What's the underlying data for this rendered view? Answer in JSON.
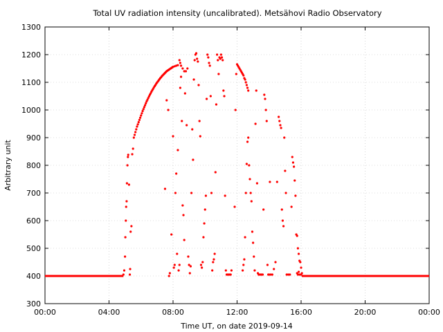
{
  "chart_data": {
    "type": "scatter",
    "title": "Total UV radiation intensity (uncalibrated). Metsähovi Radio Observatory",
    "xlabel": "Time UT, on date 2019-09-14",
    "ylabel": "Arbitrary unit",
    "xlim": [
      0,
      24
    ],
    "ylim": [
      300,
      1300
    ],
    "x_ticks": [
      0,
      4,
      8,
      12,
      16,
      20,
      24
    ],
    "x_tick_labels": [
      "00:00",
      "04:00",
      "08:00",
      "12:00",
      "16:00",
      "20:00",
      "00:00"
    ],
    "y_ticks": [
      300,
      400,
      500,
      600,
      700,
      800,
      900,
      1000,
      1100,
      1200,
      1300
    ],
    "y_tick_labels": [
      "300",
      "400",
      "500",
      "600",
      "700",
      "800",
      "900",
      "1000",
      "1100",
      "1200",
      "1300"
    ],
    "grid": true,
    "marker_color": "#ff0000",
    "baseline": {
      "value": 400,
      "x_ranges": [
        [
          0,
          4.9
        ],
        [
          16.1,
          24
        ]
      ]
    },
    "series": [
      {
        "points": [
          [
            4.9,
            405
          ],
          [
            4.95,
            420
          ],
          [
            5.0,
            470
          ],
          [
            5.02,
            540
          ],
          [
            5.05,
            600
          ],
          [
            5.07,
            650
          ],
          [
            5.1,
            670
          ],
          [
            5.12,
            735
          ],
          [
            5.15,
            800
          ],
          [
            5.18,
            830
          ],
          [
            5.2,
            838
          ],
          [
            5.25,
            730
          ],
          [
            5.3,
            405
          ],
          [
            5.32,
            425
          ],
          [
            5.35,
            560
          ],
          [
            5.4,
            580
          ],
          [
            5.45,
            840
          ],
          [
            5.5,
            860
          ],
          [
            5.55,
            900
          ],
          [
            5.6,
            910
          ],
          [
            5.65,
            920
          ],
          [
            5.7,
            930
          ],
          [
            5.75,
            940
          ],
          [
            5.8,
            948
          ],
          [
            5.85,
            956
          ],
          [
            5.9,
            964
          ],
          [
            5.95,
            972
          ],
          [
            6.0,
            980
          ],
          [
            6.05,
            988
          ],
          [
            6.1,
            996
          ],
          [
            6.15,
            1003
          ],
          [
            6.2,
            1010
          ],
          [
            6.25,
            1017
          ],
          [
            6.3,
            1024
          ],
          [
            6.35,
            1031
          ],
          [
            6.4,
            1037
          ],
          [
            6.45,
            1043
          ],
          [
            6.5,
            1049
          ],
          [
            6.55,
            1055
          ],
          [
            6.6,
            1060
          ],
          [
            6.65,
            1066
          ],
          [
            6.7,
            1071
          ],
          [
            6.75,
            1076
          ],
          [
            6.8,
            1081
          ],
          [
            6.85,
            1086
          ],
          [
            6.9,
            1090
          ],
          [
            6.95,
            1095
          ],
          [
            7.0,
            1099
          ],
          [
            7.05,
            1103
          ],
          [
            7.1,
            1107
          ],
          [
            7.15,
            1111
          ],
          [
            7.2,
            1115
          ],
          [
            7.25,
            1118
          ],
          [
            7.3,
            1122
          ],
          [
            7.35,
            1125
          ],
          [
            7.4,
            1128
          ],
          [
            7.45,
            1131
          ],
          [
            7.5,
            1134
          ],
          [
            7.55,
            1137
          ],
          [
            7.6,
            1140
          ],
          [
            7.65,
            1142
          ],
          [
            7.7,
            1144
          ],
          [
            7.75,
            1146
          ],
          [
            7.8,
            1148
          ],
          [
            7.85,
            1150
          ],
          [
            7.9,
            1152
          ],
          [
            7.95,
            1154
          ],
          [
            8.0,
            1156
          ],
          [
            8.1,
            1158
          ],
          [
            8.2,
            1160
          ],
          [
            8.3,
            1162
          ],
          [
            8.4,
            1180
          ],
          [
            8.45,
            1170
          ],
          [
            8.5,
            1160
          ],
          [
            8.6,
            1150
          ],
          [
            8.7,
            1140
          ],
          [
            7.5,
            715
          ],
          [
            7.6,
            1035
          ],
          [
            7.7,
            1000
          ],
          [
            7.75,
            400
          ],
          [
            7.8,
            410
          ],
          [
            7.9,
            550
          ],
          [
            8.0,
            905
          ],
          [
            8.05,
            430
          ],
          [
            8.1,
            440
          ],
          [
            8.15,
            700
          ],
          [
            8.2,
            770
          ],
          [
            8.25,
            480
          ],
          [
            8.3,
            855
          ],
          [
            8.35,
            420
          ],
          [
            8.4,
            440
          ],
          [
            8.45,
            1080
          ],
          [
            8.5,
            1120
          ],
          [
            8.55,
            960
          ],
          [
            8.6,
            655
          ],
          [
            8.65,
            620
          ],
          [
            8.7,
            530
          ],
          [
            8.75,
            1060
          ],
          [
            8.8,
            1140
          ],
          [
            8.85,
            945
          ],
          [
            8.9,
            1150
          ],
          [
            8.95,
            470
          ],
          [
            9.0,
            440
          ],
          [
            9.05,
            410
          ],
          [
            9.1,
            435
          ],
          [
            9.15,
            700
          ],
          [
            9.2,
            930
          ],
          [
            9.25,
            820
          ],
          [
            9.3,
            1110
          ],
          [
            9.35,
            1180
          ],
          [
            9.4,
            1200
          ],
          [
            9.45,
            1205
          ],
          [
            9.5,
            1185
          ],
          [
            9.55,
            1175
          ],
          [
            9.6,
            1090
          ],
          [
            9.65,
            960
          ],
          [
            9.7,
            905
          ],
          [
            9.75,
            440
          ],
          [
            9.8,
            430
          ],
          [
            9.85,
            450
          ],
          [
            9.9,
            540
          ],
          [
            9.95,
            590
          ],
          [
            10.0,
            640
          ],
          [
            10.05,
            690
          ],
          [
            10.1,
            1040
          ],
          [
            10.15,
            1200
          ],
          [
            10.2,
            1190
          ],
          [
            10.25,
            1170
          ],
          [
            10.3,
            1160
          ],
          [
            10.35,
            1050
          ],
          [
            10.4,
            700
          ],
          [
            10.45,
            420
          ],
          [
            10.5,
            450
          ],
          [
            10.55,
            460
          ],
          [
            10.6,
            480
          ],
          [
            10.65,
            775
          ],
          [
            10.7,
            1020
          ],
          [
            10.75,
            1200
          ],
          [
            10.8,
            1180
          ],
          [
            10.85,
            1130
          ],
          [
            10.9,
            1190
          ],
          [
            10.95,
            1185
          ],
          [
            11.0,
            1200
          ],
          [
            11.05,
            1190
          ],
          [
            11.1,
            1180
          ],
          [
            11.15,
            1070
          ],
          [
            11.2,
            1050
          ],
          [
            11.25,
            690
          ],
          [
            11.3,
            420
          ],
          [
            11.35,
            405
          ],
          [
            11.4,
            405
          ],
          [
            11.45,
            405
          ],
          [
            11.5,
            405
          ],
          [
            11.55,
            405
          ],
          [
            11.6,
            405
          ],
          [
            11.65,
            420
          ],
          [
            11.85,
            650
          ],
          [
            11.9,
            1000
          ],
          [
            11.95,
            1130
          ],
          [
            12.0,
            1165
          ],
          [
            12.05,
            1160
          ],
          [
            12.1,
            1155
          ],
          [
            12.15,
            1150
          ],
          [
            12.2,
            1145
          ],
          [
            12.25,
            1140
          ],
          [
            12.3,
            1135
          ],
          [
            12.35,
            1130
          ],
          [
            12.4,
            1125
          ],
          [
            12.45,
            1115
          ],
          [
            12.5,
            1110
          ],
          [
            12.55,
            1100
          ],
          [
            12.6,
            1090
          ],
          [
            12.65,
            1080
          ],
          [
            12.7,
            1070
          ],
          [
            12.35,
            420
          ],
          [
            12.4,
            440
          ],
          [
            12.45,
            460
          ],
          [
            12.5,
            540
          ],
          [
            12.55,
            700
          ],
          [
            12.6,
            805
          ],
          [
            12.65,
            885
          ],
          [
            12.7,
            900
          ],
          [
            12.75,
            800
          ],
          [
            12.8,
            750
          ],
          [
            12.85,
            700
          ],
          [
            12.9,
            670
          ],
          [
            12.95,
            560
          ],
          [
            13.0,
            520
          ],
          [
            13.05,
            470
          ],
          [
            13.1,
            420
          ],
          [
            13.15,
            950
          ],
          [
            13.2,
            1070
          ],
          [
            13.25,
            735
          ],
          [
            13.3,
            410
          ],
          [
            13.35,
            405
          ],
          [
            13.4,
            405
          ],
          [
            13.45,
            405
          ],
          [
            13.5,
            405
          ],
          [
            13.55,
            405
          ],
          [
            13.6,
            405
          ],
          [
            13.65,
            640
          ],
          [
            13.7,
            1055
          ],
          [
            13.75,
            1040
          ],
          [
            13.8,
            1000
          ],
          [
            13.85,
            960
          ],
          [
            13.9,
            440
          ],
          [
            13.95,
            405
          ],
          [
            14.0,
            405
          ],
          [
            14.05,
            740
          ],
          [
            14.1,
            405
          ],
          [
            14.2,
            405
          ],
          [
            14.3,
            425
          ],
          [
            14.4,
            450
          ],
          [
            14.5,
            740
          ],
          [
            14.6,
            975
          ],
          [
            14.65,
            960
          ],
          [
            14.7,
            945
          ],
          [
            14.75,
            935
          ],
          [
            14.8,
            640
          ],
          [
            14.85,
            600
          ],
          [
            14.9,
            580
          ],
          [
            14.95,
            900
          ],
          [
            15.0,
            780
          ],
          [
            15.05,
            700
          ],
          [
            15.1,
            405
          ],
          [
            15.2,
            405
          ],
          [
            15.3,
            405
          ],
          [
            15.4,
            650
          ],
          [
            15.45,
            830
          ],
          [
            15.5,
            810
          ],
          [
            15.55,
            795
          ],
          [
            15.6,
            745
          ],
          [
            15.65,
            690
          ],
          [
            15.7,
            550
          ],
          [
            15.75,
            545
          ],
          [
            15.8,
            500
          ],
          [
            15.85,
            480
          ],
          [
            15.9,
            455
          ],
          [
            15.95,
            450
          ],
          [
            16.0,
            430
          ],
          [
            16.05,
            410
          ],
          [
            15.75,
            410
          ],
          [
            15.8,
            405
          ],
          [
            15.85,
            415
          ],
          [
            15.9,
            405
          ],
          [
            16.0,
            405
          ],
          [
            16.1,
            400
          ]
        ]
      }
    ]
  }
}
